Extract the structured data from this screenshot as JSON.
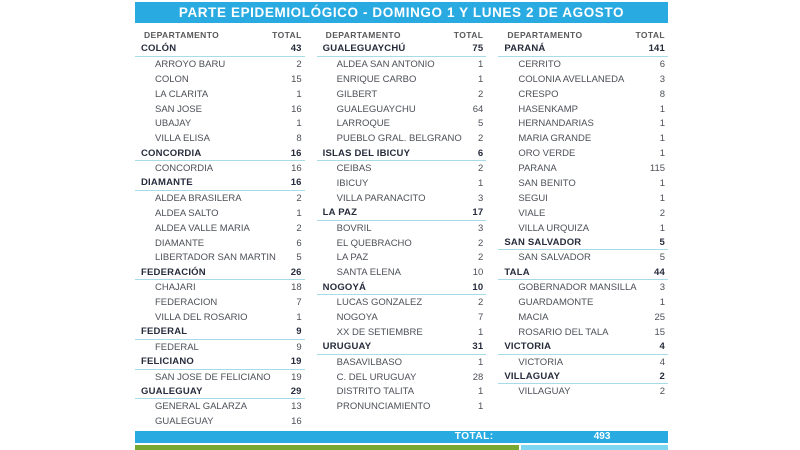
{
  "title": "PARTE EPIDEMIOLÓGICO - DOMINGO 1 Y LUNES 2 DE AGOSTO",
  "column_header": {
    "department": "DEPARTAMENTO",
    "total": "TOTAL"
  },
  "footer": {
    "label": "TOTAL:",
    "value": "493"
  },
  "colors": {
    "bar_cyan": "#29abe2",
    "underline_cyan": "#a7dbe9",
    "strip_green": "#76a832",
    "strip_light_cyan": "#7fd6f0"
  },
  "columns": [
    {
      "rows": [
        {
          "type": "dept",
          "name": "COLÓN",
          "total": "43"
        },
        {
          "type": "loc",
          "name": "ARROYO BARU",
          "total": "2"
        },
        {
          "type": "loc",
          "name": "COLON",
          "total": "15"
        },
        {
          "type": "loc",
          "name": "LA CLARITA",
          "total": "1"
        },
        {
          "type": "loc",
          "name": "SAN JOSE",
          "total": "16"
        },
        {
          "type": "loc",
          "name": "UBAJAY",
          "total": "1"
        },
        {
          "type": "loc",
          "name": "VILLA ELISA",
          "total": "8"
        },
        {
          "type": "dept",
          "name": "CONCORDIA",
          "total": "16"
        },
        {
          "type": "loc",
          "name": "CONCORDIA",
          "total": "16"
        },
        {
          "type": "dept",
          "name": "DIAMANTE",
          "total": "16"
        },
        {
          "type": "loc",
          "name": "ALDEA BRASILERA",
          "total": "2"
        },
        {
          "type": "loc",
          "name": "ALDEA SALTO",
          "total": "1"
        },
        {
          "type": "loc",
          "name": "ALDEA VALLE MARIA",
          "total": "2"
        },
        {
          "type": "loc",
          "name": "DIAMANTE",
          "total": "6"
        },
        {
          "type": "loc",
          "name": "LIBERTADOR SAN MARTIN",
          "total": "5"
        },
        {
          "type": "dept",
          "name": "FEDERACIÓN",
          "total": "26"
        },
        {
          "type": "loc",
          "name": "CHAJARI",
          "total": "18"
        },
        {
          "type": "loc",
          "name": "FEDERACION",
          "total": "7"
        },
        {
          "type": "loc",
          "name": "VILLA DEL ROSARIO",
          "total": "1"
        },
        {
          "type": "dept",
          "name": "FEDERAL",
          "total": "9"
        },
        {
          "type": "loc",
          "name": "FEDERAL",
          "total": "9"
        },
        {
          "type": "dept",
          "name": "FELICIANO",
          "total": "19"
        },
        {
          "type": "loc",
          "name": "SAN JOSE DE FELICIANO",
          "total": "19"
        },
        {
          "type": "dept",
          "name": "GUALEGUAY",
          "total": "29"
        },
        {
          "type": "loc",
          "name": "GENERAL GALARZA",
          "total": "13"
        },
        {
          "type": "loc",
          "name": "GUALEGUAY",
          "total": "16"
        }
      ]
    },
    {
      "rows": [
        {
          "type": "dept",
          "name": "GUALEGUAYCHÚ",
          "total": "75"
        },
        {
          "type": "loc",
          "name": "ALDEA SAN ANTONIO",
          "total": "1"
        },
        {
          "type": "loc",
          "name": "ENRIQUE CARBO",
          "total": "1"
        },
        {
          "type": "loc",
          "name": "GILBERT",
          "total": "2"
        },
        {
          "type": "loc",
          "name": "GUALEGUAYCHU",
          "total": "64"
        },
        {
          "type": "loc",
          "name": "LARROQUE",
          "total": "5"
        },
        {
          "type": "loc",
          "name": "PUEBLO GRAL. BELGRANO",
          "total": "2"
        },
        {
          "type": "dept",
          "name": "ISLAS DEL IBICUY",
          "total": "6"
        },
        {
          "type": "loc",
          "name": "CEIBAS",
          "total": "2"
        },
        {
          "type": "loc",
          "name": "IBICUY",
          "total": "1"
        },
        {
          "type": "loc",
          "name": "VILLA PARANACITO",
          "total": "3"
        },
        {
          "type": "dept",
          "name": "LA PAZ",
          "total": "17"
        },
        {
          "type": "loc",
          "name": "BOVRIL",
          "total": "3"
        },
        {
          "type": "loc",
          "name": "EL QUEBRACHO",
          "total": "2"
        },
        {
          "type": "loc",
          "name": "LA PAZ",
          "total": "2"
        },
        {
          "type": "loc",
          "name": "SANTA ELENA",
          "total": "10"
        },
        {
          "type": "dept",
          "name": "NOGOYÁ",
          "total": "10"
        },
        {
          "type": "loc",
          "name": "LUCAS GONZALEZ",
          "total": "2"
        },
        {
          "type": "loc",
          "name": "NOGOYA",
          "total": "7"
        },
        {
          "type": "loc",
          "name": "XX DE SETIEMBRE",
          "total": "1"
        },
        {
          "type": "dept",
          "name": "URUGUAY",
          "total": "31"
        },
        {
          "type": "loc",
          "name": "BASAVILBASO",
          "total": "1"
        },
        {
          "type": "loc",
          "name": "C. DEL URUGUAY",
          "total": "28"
        },
        {
          "type": "loc",
          "name": "DISTRITO TALITA",
          "total": "1"
        },
        {
          "type": "loc",
          "name": "PRONUNCIAMIENTO",
          "total": "1"
        }
      ]
    },
    {
      "rows": [
        {
          "type": "dept",
          "name": "PARANÁ",
          "total": "141"
        },
        {
          "type": "loc",
          "name": "CERRITO",
          "total": "6"
        },
        {
          "type": "loc",
          "name": "COLONIA AVELLANEDA",
          "total": "3"
        },
        {
          "type": "loc",
          "name": "CRESPO",
          "total": "8"
        },
        {
          "type": "loc",
          "name": "HASENKAMP",
          "total": "1"
        },
        {
          "type": "loc",
          "name": "HERNANDARIAS",
          "total": "1"
        },
        {
          "type": "loc",
          "name": "MARIA GRANDE",
          "total": "1"
        },
        {
          "type": "loc",
          "name": "ORO VERDE",
          "total": "1"
        },
        {
          "type": "loc",
          "name": "PARANA",
          "total": "115"
        },
        {
          "type": "loc",
          "name": "SAN BENITO",
          "total": "1"
        },
        {
          "type": "loc",
          "name": "SEGUI",
          "total": "1"
        },
        {
          "type": "loc",
          "name": "VIALE",
          "total": "2"
        },
        {
          "type": "loc",
          "name": "VILLA URQUIZA",
          "total": "1"
        },
        {
          "type": "dept",
          "name": "SAN SALVADOR",
          "total": "5"
        },
        {
          "type": "loc",
          "name": "SAN SALVADOR",
          "total": "5"
        },
        {
          "type": "dept",
          "name": "TALA",
          "total": "44"
        },
        {
          "type": "loc",
          "name": "GOBERNADOR MANSILLA",
          "total": "3"
        },
        {
          "type": "loc",
          "name": "GUARDAMONTE",
          "total": "1"
        },
        {
          "type": "loc",
          "name": "MACIA",
          "total": "25"
        },
        {
          "type": "loc",
          "name": "ROSARIO DEL TALA",
          "total": "15"
        },
        {
          "type": "dept",
          "name": "VICTORIA",
          "total": "4"
        },
        {
          "type": "loc",
          "name": "VICTORIA",
          "total": "4"
        },
        {
          "type": "dept",
          "name": "VILLAGUAY",
          "total": "2"
        },
        {
          "type": "loc",
          "name": "VILLAGUAY",
          "total": "2"
        }
      ]
    }
  ]
}
